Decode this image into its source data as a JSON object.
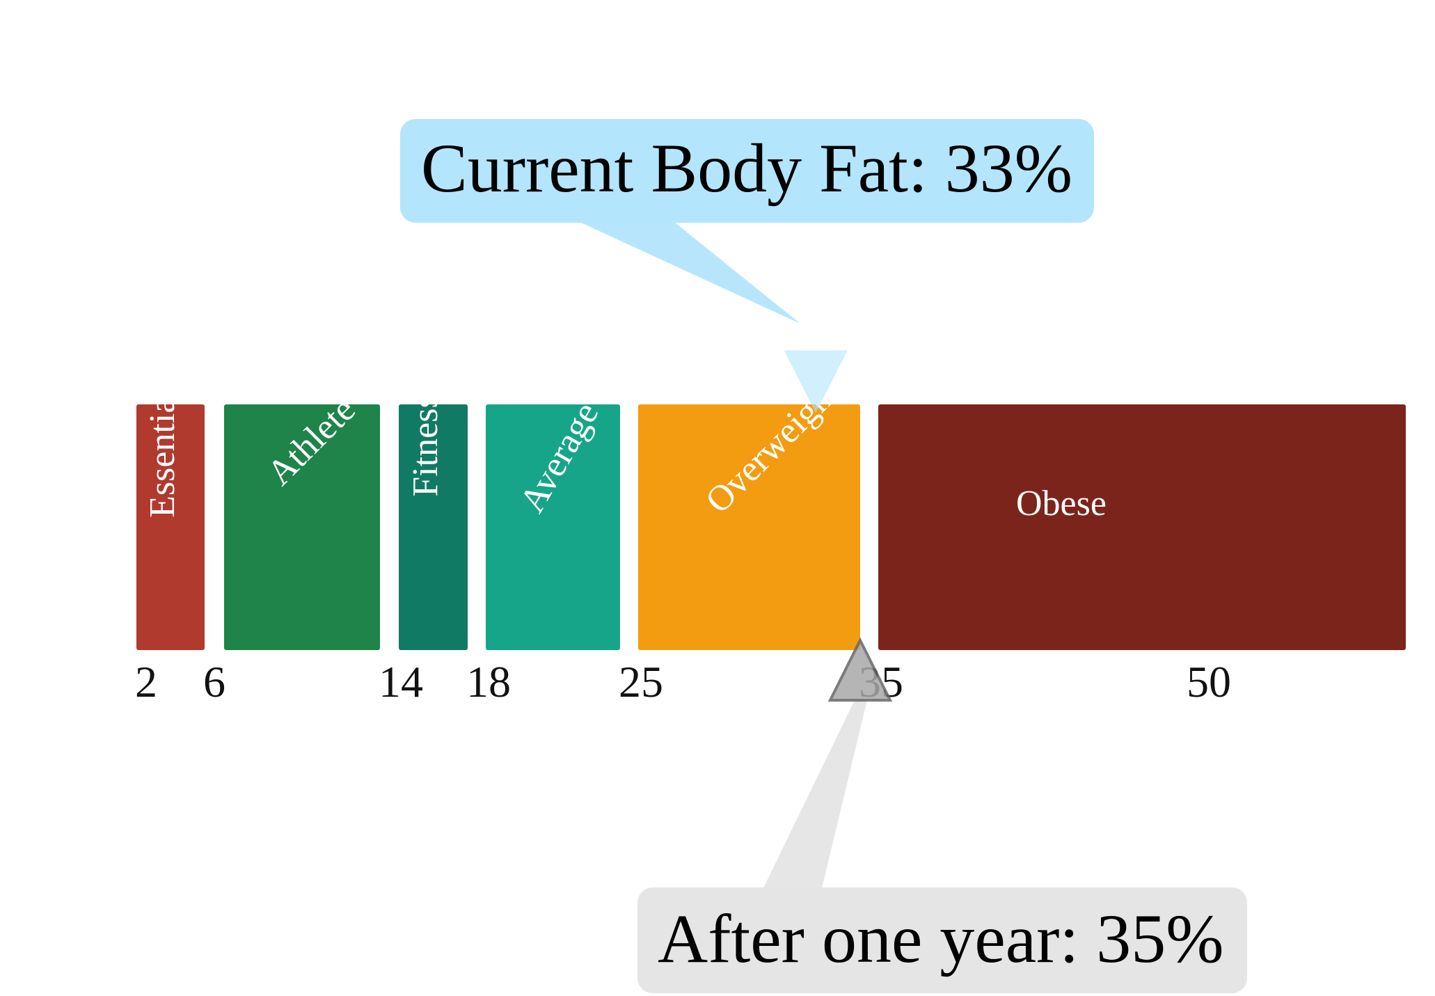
{
  "categories": [
    {
      "label": "Essential",
      "start": 2,
      "end": 6,
      "color": "#B03A2E",
      "rotation": -90
    },
    {
      "label": "Athlete",
      "start": 6,
      "end": 14,
      "color": "#1E8449",
      "rotation": -45
    },
    {
      "label": "Fitness",
      "start": 14,
      "end": 18,
      "color": "#117A65",
      "rotation": -90
    },
    {
      "label": "Average",
      "start": 18,
      "end": 25,
      "color": "#17A589",
      "rotation": -60
    },
    {
      "label": "Overweight",
      "start": 25,
      "end": 35,
      "color": "#F39C12",
      "rotation": -45
    },
    {
      "label": "Obese",
      "start": 35,
      "end": 60,
      "color": "#7B241C",
      "rotation": 0
    }
  ],
  "ticks": [
    2,
    6,
    14,
    18,
    25,
    35,
    50
  ],
  "current": {
    "text": "Current Body Fat: 33%",
    "value": 33,
    "bubble_color": "#B3E5FC",
    "marker_color": "#B3E5FC"
  },
  "future": {
    "text": "After one year: 35%",
    "value": 35,
    "bubble_color": "#E5E5E5",
    "marker_color": "#A9A9A9"
  }
}
